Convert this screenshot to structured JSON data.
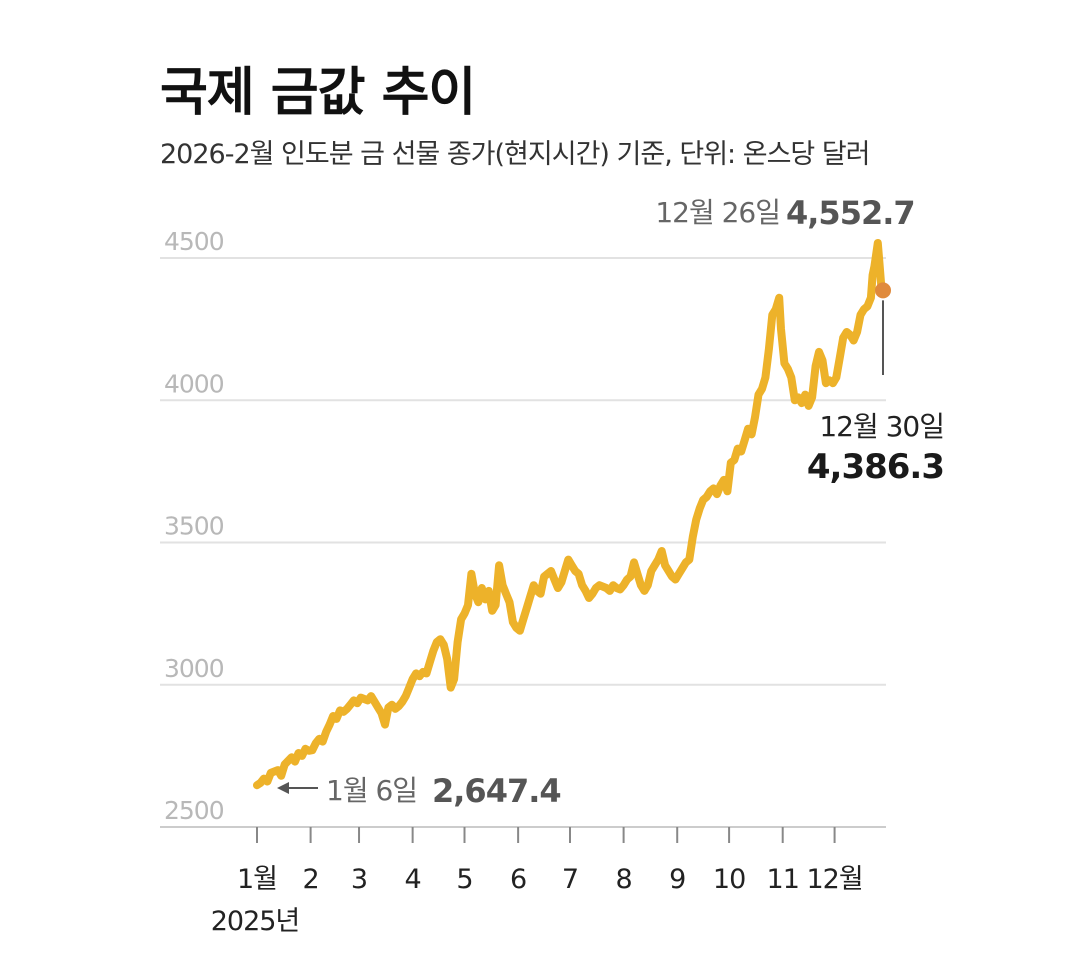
{
  "header": {
    "title": "국제 금값 추이",
    "subtitle": "2026-2월 인도분 금 선물 종가(현지시간) 기준, 단위: 온스당 달러"
  },
  "colors": {
    "line": "#EDB22A",
    "end_dot": "#E08A3C",
    "grid": "#e2e2e2",
    "axis": "#cccccc"
  },
  "chart_data": {
    "type": "line",
    "title": "국제 금값 추이",
    "subtitle": "2026-2월 인도분 금 선물 종가(현지시간) 기준, 단위: 온스당 달러",
    "xlabel": "",
    "ylabel": "",
    "y_ticks": [
      "4500",
      "4000",
      "3500",
      "3000",
      "2500"
    ],
    "ylim": [
      2500,
      4550
    ],
    "x_ticks": [
      "1월",
      "2",
      "3",
      "4",
      "5",
      "6",
      "7",
      "8",
      "9",
      "10",
      "11",
      "12월"
    ],
    "x_sublabel": "2025년",
    "grid": true,
    "series": [
      {
        "values": [
          [
            1,
            2647
          ],
          [
            3,
            2655
          ],
          [
            5,
            2670
          ],
          [
            7,
            2660
          ],
          [
            9,
            2690
          ],
          [
            13,
            2700
          ],
          [
            15,
            2680
          ],
          [
            17,
            2720
          ],
          [
            21,
            2745
          ],
          [
            23,
            2730
          ],
          [
            25,
            2760
          ],
          [
            27,
            2750
          ],
          [
            29,
            2775
          ],
          [
            31,
            2768
          ],
          [
            33,
            2770
          ],
          [
            35,
            2795
          ],
          [
            37,
            2810
          ],
          [
            39,
            2800
          ],
          [
            41,
            2835
          ],
          [
            43,
            2860
          ],
          [
            45,
            2890
          ],
          [
            47,
            2880
          ],
          [
            49,
            2910
          ],
          [
            51,
            2905
          ],
          [
            53,
            2915
          ],
          [
            55,
            2930
          ],
          [
            57,
            2945
          ],
          [
            59,
            2935
          ],
          [
            61,
            2955
          ],
          [
            63,
            2950
          ],
          [
            65,
            2945
          ],
          [
            67,
            2960
          ],
          [
            69,
            2940
          ],
          [
            71,
            2920
          ],
          [
            73,
            2900
          ],
          [
            75,
            2860
          ],
          [
            77,
            2920
          ],
          [
            79,
            2930
          ],
          [
            81,
            2915
          ],
          [
            83,
            2925
          ],
          [
            85,
            2940
          ],
          [
            87,
            2960
          ],
          [
            89,
            2990
          ],
          [
            91,
            3020
          ],
          [
            93,
            3040
          ],
          [
            95,
            3030
          ],
          [
            97,
            3045
          ],
          [
            99,
            3040
          ],
          [
            101,
            3080
          ],
          [
            103,
            3120
          ],
          [
            105,
            3150
          ],
          [
            107,
            3160
          ],
          [
            109,
            3140
          ],
          [
            111,
            3090
          ],
          [
            113,
            2990
          ],
          [
            115,
            3020
          ],
          [
            117,
            3150
          ],
          [
            119,
            3230
          ],
          [
            121,
            3250
          ],
          [
            123,
            3280
          ],
          [
            125,
            3390
          ],
          [
            127,
            3320
          ],
          [
            129,
            3290
          ],
          [
            131,
            3340
          ],
          [
            133,
            3300
          ],
          [
            135,
            3330
          ],
          [
            137,
            3260
          ],
          [
            139,
            3280
          ],
          [
            141,
            3420
          ],
          [
            143,
            3350
          ],
          [
            145,
            3320
          ],
          [
            147,
            3290
          ],
          [
            149,
            3220
          ],
          [
            151,
            3200
          ],
          [
            153,
            3190
          ],
          [
            155,
            3230
          ],
          [
            157,
            3270
          ],
          [
            159,
            3310
          ],
          [
            161,
            3350
          ],
          [
            163,
            3330
          ],
          [
            165,
            3320
          ],
          [
            167,
            3380
          ],
          [
            169,
            3390
          ],
          [
            171,
            3400
          ],
          [
            173,
            3370
          ],
          [
            175,
            3340
          ],
          [
            177,
            3360
          ],
          [
            179,
            3400
          ],
          [
            181,
            3440
          ],
          [
            183,
            3420
          ],
          [
            185,
            3400
          ],
          [
            187,
            3390
          ],
          [
            189,
            3350
          ],
          [
            191,
            3330
          ],
          [
            193,
            3305
          ],
          [
            195,
            3320
          ],
          [
            197,
            3340
          ],
          [
            199,
            3350
          ],
          [
            201,
            3345
          ],
          [
            203,
            3340
          ],
          [
            205,
            3330
          ],
          [
            207,
            3350
          ],
          [
            209,
            3340
          ],
          [
            211,
            3335
          ],
          [
            213,
            3350
          ],
          [
            215,
            3370
          ],
          [
            217,
            3380
          ],
          [
            219,
            3430
          ],
          [
            221,
            3390
          ],
          [
            223,
            3350
          ],
          [
            225,
            3330
          ],
          [
            227,
            3350
          ],
          [
            229,
            3400
          ],
          [
            231,
            3420
          ],
          [
            233,
            3440
          ],
          [
            235,
            3470
          ],
          [
            237,
            3420
          ],
          [
            239,
            3400
          ],
          [
            241,
            3380
          ],
          [
            243,
            3370
          ],
          [
            245,
            3390
          ],
          [
            247,
            3410
          ],
          [
            249,
            3430
          ],
          [
            251,
            3440
          ],
          [
            253,
            3520
          ],
          [
            255,
            3580
          ],
          [
            257,
            3620
          ],
          [
            259,
            3650
          ],
          [
            261,
            3660
          ],
          [
            263,
            3680
          ],
          [
            265,
            3690
          ],
          [
            267,
            3670
          ],
          [
            269,
            3700
          ],
          [
            271,
            3720
          ],
          [
            273,
            3680
          ],
          [
            275,
            3780
          ],
          [
            277,
            3790
          ],
          [
            279,
            3830
          ],
          [
            281,
            3820
          ],
          [
            283,
            3860
          ],
          [
            285,
            3900
          ],
          [
            287,
            3880
          ],
          [
            289,
            3940
          ],
          [
            291,
            4020
          ],
          [
            293,
            4040
          ],
          [
            295,
            4080
          ],
          [
            297,
            4180
          ],
          [
            299,
            4300
          ],
          [
            301,
            4320
          ],
          [
            303,
            4360
          ],
          [
            304,
            4250
          ],
          [
            306,
            4130
          ],
          [
            308,
            4110
          ],
          [
            310,
            4080
          ],
          [
            312,
            4000
          ],
          [
            314,
            4010
          ],
          [
            316,
            3990
          ],
          [
            318,
            4020
          ],
          [
            320,
            3980
          ],
          [
            322,
            4010
          ],
          [
            324,
            4120
          ],
          [
            326,
            4170
          ],
          [
            328,
            4140
          ],
          [
            330,
            4060
          ],
          [
            332,
            4070
          ],
          [
            334,
            4060
          ],
          [
            336,
            4080
          ],
          [
            338,
            4150
          ],
          [
            340,
            4220
          ],
          [
            342,
            4240
          ],
          [
            344,
            4230
          ],
          [
            346,
            4210
          ],
          [
            348,
            4240
          ],
          [
            350,
            4300
          ],
          [
            352,
            4320
          ],
          [
            354,
            4330
          ],
          [
            356,
            4360
          ],
          [
            357,
            4440
          ],
          [
            358,
            4470
          ],
          [
            360,
            4552.7
          ],
          [
            361,
            4480
          ],
          [
            362,
            4400
          ],
          [
            363,
            4386.3
          ]
        ]
      }
    ],
    "annotations": [
      {
        "date": "1월 6일",
        "value": "2,647.4"
      },
      {
        "date": "12월 26일",
        "value": "4,552.7"
      },
      {
        "date": "12월 30일",
        "value": "4,386.3"
      }
    ]
  }
}
